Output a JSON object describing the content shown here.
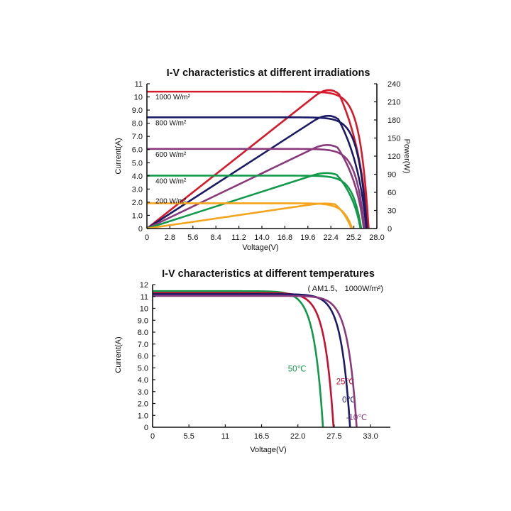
{
  "chart_data": [
    {
      "type": "line",
      "title": "I-V characteristics at different irradiations",
      "xlabel": "Voltage(V)",
      "ylabel": "Current(A)",
      "y2label": "Power(W)",
      "xlim": [
        0,
        28.0
      ],
      "ylim": [
        0,
        11
      ],
      "y2lim": [
        0,
        240
      ],
      "x_ticks": [
        "0",
        "2.8",
        "5.6",
        "8.4",
        "11.2",
        "14.0",
        "16.8",
        "19.6",
        "22.4",
        "25.2",
        "28.0"
      ],
      "y_ticks": [
        "0",
        "1.0",
        "2.0",
        "3.0",
        "4.0",
        "5.0",
        "6.0",
        "7.0",
        "8.0",
        "9.0",
        "10",
        "11"
      ],
      "y2_ticks": [
        "0",
        "30",
        "60",
        "90",
        "120",
        "150",
        "180",
        "210",
        "240"
      ],
      "grid": false,
      "series": [
        {
          "name": "1000 W/m²",
          "color": "#d7192c",
          "isc": 10.4,
          "voc": 27.0,
          "pmax": 232,
          "vmp": 22.2
        },
        {
          "name": "800 W/m²",
          "color": "#1b1a66",
          "isc": 8.45,
          "voc": 26.8,
          "pmax": 189,
          "vmp": 22.1
        },
        {
          "name": "600 W/m²",
          "color": "#8a3a7c",
          "isc": 6.05,
          "voc": 26.5,
          "pmax": 140,
          "vmp": 22.0
        },
        {
          "name": "400 W/m²",
          "color": "#109a49",
          "isc": 4.02,
          "voc": 26.1,
          "pmax": 93,
          "vmp": 21.9
        },
        {
          "name": "200 W/m²",
          "color": "#f5a51d",
          "isc": 1.92,
          "voc": 25.0,
          "pmax": 42,
          "vmp": 21.7
        }
      ]
    },
    {
      "type": "line",
      "title": "I-V characteristics at different temperatures",
      "subtitle": "( AM1.5、 1000W/m²)",
      "xlabel": "Voltage(V)",
      "ylabel": "Current(A)",
      "xlim": [
        0,
        36.0
      ],
      "ylim": [
        0,
        12
      ],
      "x_ticks": [
        "0",
        "5.5",
        "11",
        "16.5",
        "22.0",
        "27.5",
        "33.0"
      ],
      "y_ticks": [
        "0",
        "1.0",
        "2.0",
        "3.0",
        "4.0",
        "5.0",
        "6.0",
        "7.0",
        "8.0",
        "9.0",
        "10",
        "11",
        "12"
      ],
      "grid": false,
      "series": [
        {
          "name": "50℃",
          "color": "#109a49",
          "isc": 11.45,
          "voc": 25.8
        },
        {
          "name": "25℃",
          "color": "#c8102e",
          "isc": 11.3,
          "voc": 27.4
        },
        {
          "name": "0℃",
          "color": "#1b1a66",
          "isc": 11.2,
          "voc": 29.9
        },
        {
          "name": "-10℃",
          "color": "#8a3a7c",
          "isc": 11.05,
          "voc": 30.9
        }
      ]
    }
  ]
}
